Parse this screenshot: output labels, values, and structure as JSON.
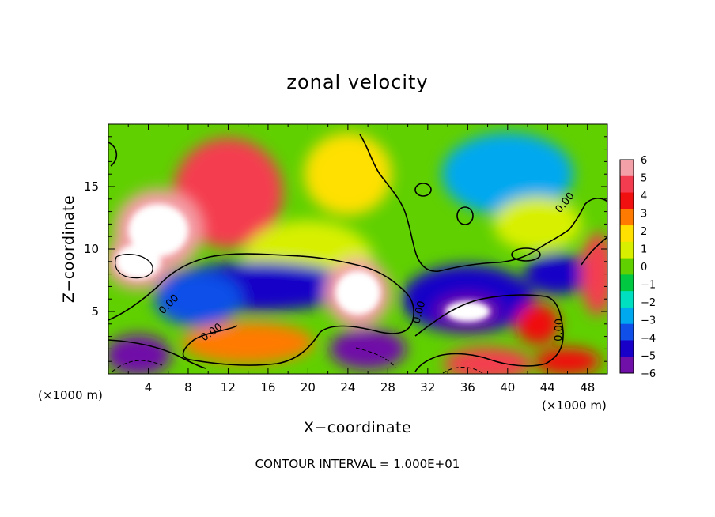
{
  "chart_data": {
    "type": "heatmap",
    "title": "zonal velocity",
    "xlabel": "X−coordinate",
    "ylabel": "Z−coordinate",
    "x_unit_label": "(×1000 m)",
    "x_unit_label_right": "(×1000 m)",
    "footnote": "CONTOUR INTERVAL = 1.000E+01",
    "xlim": [
      0,
      50
    ],
    "ylim": [
      0,
      20
    ],
    "x_ticks": [
      "4",
      "8",
      "12",
      "16",
      "20",
      "24",
      "28",
      "32",
      "36",
      "40",
      "44",
      "48"
    ],
    "y_ticks": [
      "5",
      "10",
      "15"
    ],
    "colorbar": {
      "levels": [
        "6",
        "5",
        "4",
        "3",
        "2",
        "1",
        "0",
        "−1",
        "−2",
        "−3",
        "−4",
        "−5",
        "−6"
      ],
      "range": [
        -6,
        6
      ],
      "colors": [
        "#f4a0a8",
        "#f43c50",
        "#f01010",
        "#ff7a00",
        "#ffe000",
        "#d8f000",
        "#60d000",
        "#00c840",
        "#00e0c0",
        "#00a8f0",
        "#1050e8",
        "#1800c8",
        "#7010a8"
      ]
    },
    "contour_labels": [
      "0.00",
      "0.00",
      "0.00",
      "0.00",
      "0.00"
    ],
    "features": [
      {
        "x": 12,
        "z": 14.5,
        "value": 5,
        "extent": [
          5,
          4
        ]
      },
      {
        "x": 5,
        "z": 11.5,
        "value": 6.5,
        "extent": [
          4,
          3
        ]
      },
      {
        "x": 3,
        "z": 9,
        "value": 7,
        "extent": [
          3,
          2
        ]
      },
      {
        "x": 24,
        "z": 16,
        "value": 2,
        "extent": [
          4,
          3
        ]
      },
      {
        "x": 20,
        "z": 9,
        "value": 1.5,
        "extent": [
          6,
          3
        ]
      },
      {
        "x": 15,
        "z": 7,
        "value": -5,
        "extent": [
          9,
          1.8
        ]
      },
      {
        "x": 9,
        "z": 6,
        "value": -4,
        "extent": [
          4,
          2
        ]
      },
      {
        "x": 25,
        "z": 6.5,
        "value": 6.5,
        "extent": [
          3,
          2.5
        ]
      },
      {
        "x": 26,
        "z": 2,
        "value": -6,
        "extent": [
          3.5,
          1.5
        ]
      },
      {
        "x": 14,
        "z": 2.5,
        "value": 3,
        "extent": [
          6,
          1.5
        ]
      },
      {
        "x": 3,
        "z": 1.5,
        "value": -6,
        "extent": [
          3,
          1.5
        ]
      },
      {
        "x": 40,
        "z": 16,
        "value": -2.5,
        "extent": [
          6,
          3
        ]
      },
      {
        "x": 36,
        "z": 6,
        "value": -4.5,
        "extent": [
          6,
          2.5
        ]
      },
      {
        "x": 36,
        "z": 5,
        "value": -6.5,
        "extent": [
          3,
          1.2
        ]
      },
      {
        "x": 45,
        "z": 8,
        "value": -4.5,
        "extent": [
          3,
          1.5
        ]
      },
      {
        "x": 43,
        "z": 4,
        "value": 4.5,
        "extent": [
          2,
          1.5
        ]
      },
      {
        "x": 38,
        "z": 0.8,
        "value": 5,
        "extent": [
          4,
          1.2
        ]
      },
      {
        "x": 46,
        "z": 1,
        "value": 4,
        "extent": [
          3,
          1
        ]
      },
      {
        "x": 49,
        "z": 8,
        "value": 5,
        "extent": [
          1.5,
          3
        ]
      },
      {
        "x": 43,
        "z": 12,
        "value": 1.5,
        "extent": [
          4,
          2
        ]
      }
    ]
  }
}
